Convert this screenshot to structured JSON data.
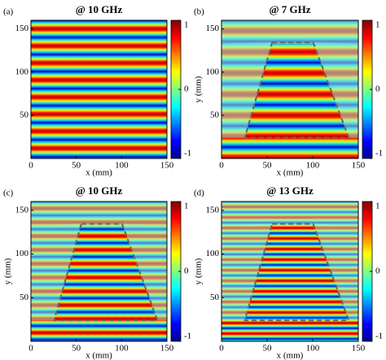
{
  "chart_data": [
    {
      "type": "heatmap",
      "panel": "(a)",
      "title": "@ 10 GHz",
      "xlabel": "x (mm)",
      "xlim": [
        0,
        150
      ],
      "ylim": [
        0,
        160
      ],
      "xticks": [
        0,
        50,
        100,
        150
      ],
      "yticks": [
        50,
        100,
        150
      ],
      "clim": [
        -1,
        1
      ],
      "cticks": [
        -1,
        0,
        1
      ]
    },
    {
      "type": "heatmap",
      "panel": "(b)",
      "title": "@ 7 GHz",
      "xlabel": "x (mm)",
      "ylabel": "y (mm)",
      "xlim": [
        0,
        150
      ],
      "ylim": [
        0,
        160
      ],
      "xticks": [
        0,
        50,
        100,
        150
      ],
      "yticks": [
        50,
        100,
        150
      ],
      "clim": [
        -1,
        1
      ],
      "cticks": [
        -1,
        0,
        1
      ]
    },
    {
      "type": "heatmap",
      "panel": "(c)",
      "title": "@ 10 GHz",
      "xlabel": "x (mm)",
      "ylabel": "y (mm)",
      "xlim": [
        0,
        150
      ],
      "ylim": [
        0,
        160
      ],
      "xticks": [
        0,
        50,
        100,
        150
      ],
      "yticks": [
        50,
        100,
        150
      ],
      "clim": [
        -1,
        1
      ],
      "cticks": [
        -1,
        0,
        1
      ]
    },
    {
      "type": "heatmap",
      "panel": "(d)",
      "title": "@ 13 GHz",
      "xlabel": "x (mm)",
      "ylabel": "y (mm)",
      "xlim": [
        0,
        150
      ],
      "ylim": [
        0,
        160
      ],
      "xticks": [
        0,
        50,
        100,
        150
      ],
      "yticks": [
        50,
        100,
        150
      ],
      "clim": [
        -1,
        1
      ],
      "cticks": [
        -1,
        0,
        1
      ]
    }
  ]
}
